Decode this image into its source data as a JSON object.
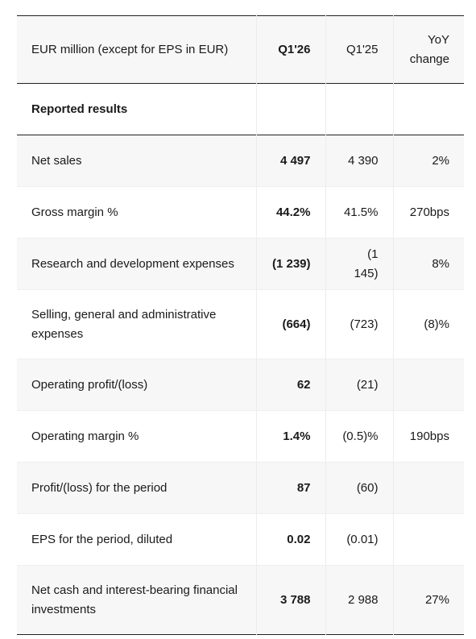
{
  "table": {
    "header": {
      "label": "EUR million (except for EPS in EUR)",
      "col_current": "Q1'26",
      "col_prior": "Q1'25",
      "col_change": "YoY change"
    },
    "section_title": "Reported results",
    "rows": [
      {
        "label": "Net sales",
        "current": "4 497",
        "prior": "4 390",
        "change": "2%"
      },
      {
        "label": "Gross margin %",
        "current": "44.2%",
        "prior": "41.5%",
        "change": "270bps"
      },
      {
        "label": "Research and development expenses",
        "current": "(1 239)",
        "prior": "(1 145)",
        "change": "8%"
      },
      {
        "label": "Selling, general and administrative expenses",
        "current": "(664)",
        "prior": "(723)",
        "change": "(8)%"
      },
      {
        "label": "Operating profit/(loss)",
        "current": "62",
        "prior": "(21)",
        "change": ""
      },
      {
        "label": "Operating margin %",
        "current": "1.4%",
        "prior": "(0.5)%",
        "change": "190bps"
      },
      {
        "label": "Profit/(loss) for the period",
        "current": "87",
        "prior": "(60)",
        "change": ""
      },
      {
        "label": "EPS for the period, diluted",
        "current": "0.02",
        "prior": "(0.01)",
        "change": ""
      },
      {
        "label": "Net cash and interest-bearing financial investments",
        "current": "3 788",
        "prior": "2 988",
        "change": "27%"
      }
    ]
  }
}
